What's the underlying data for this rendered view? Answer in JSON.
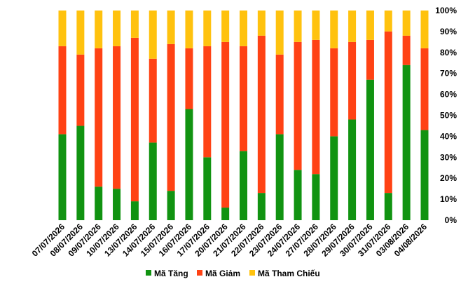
{
  "chart_data": {
    "type": "bar",
    "stacked": true,
    "percent": true,
    "categories": [
      "07/07/2026",
      "08/07/2026",
      "09/07/2026",
      "10/07/2026",
      "13/07/2026",
      "14/07/2026",
      "15/07/2026",
      "16/07/2026",
      "17/07/2026",
      "20/07/2026",
      "21/07/2026",
      "22/07/2026",
      "23/07/2026",
      "24/07/2026",
      "27/07/2026",
      "28/07/2026",
      "29/07/2026",
      "30/07/2026",
      "31/07/2026",
      "03/08/2026",
      "04/08/2026"
    ],
    "series": [
      {
        "name": "Mã Tăng",
        "color": "#119311",
        "values": [
          41,
          45,
          16,
          15,
          9,
          37,
          14,
          53,
          30,
          6,
          33,
          13,
          41,
          24,
          22,
          40,
          48,
          67,
          13,
          74,
          43
        ]
      },
      {
        "name": "Mã Giảm",
        "color": "#FF4214",
        "values": [
          42,
          34,
          66,
          68,
          78,
          40,
          70,
          29,
          53,
          79,
          50,
          75,
          38,
          61,
          64,
          42,
          37,
          19,
          77,
          14,
          39
        ]
      },
      {
        "name": "Mã Tham Chiếu",
        "color": "#FFC20E",
        "values": [
          17,
          21,
          18,
          17,
          13,
          23,
          16,
          18,
          17,
          15,
          17,
          12,
          21,
          15,
          14,
          18,
          15,
          14,
          10,
          12,
          18
        ]
      }
    ],
    "ylim": [
      0,
      100
    ],
    "yticks": [
      "0%",
      "10%",
      "20%",
      "30%",
      "40%",
      "50%",
      "60%",
      "70%",
      "80%",
      "90%",
      "100%"
    ],
    "y_axis_position": "right",
    "grid": false,
    "legend_position": "bottom",
    "title": "",
    "xlabel": "",
    "ylabel": ""
  }
}
